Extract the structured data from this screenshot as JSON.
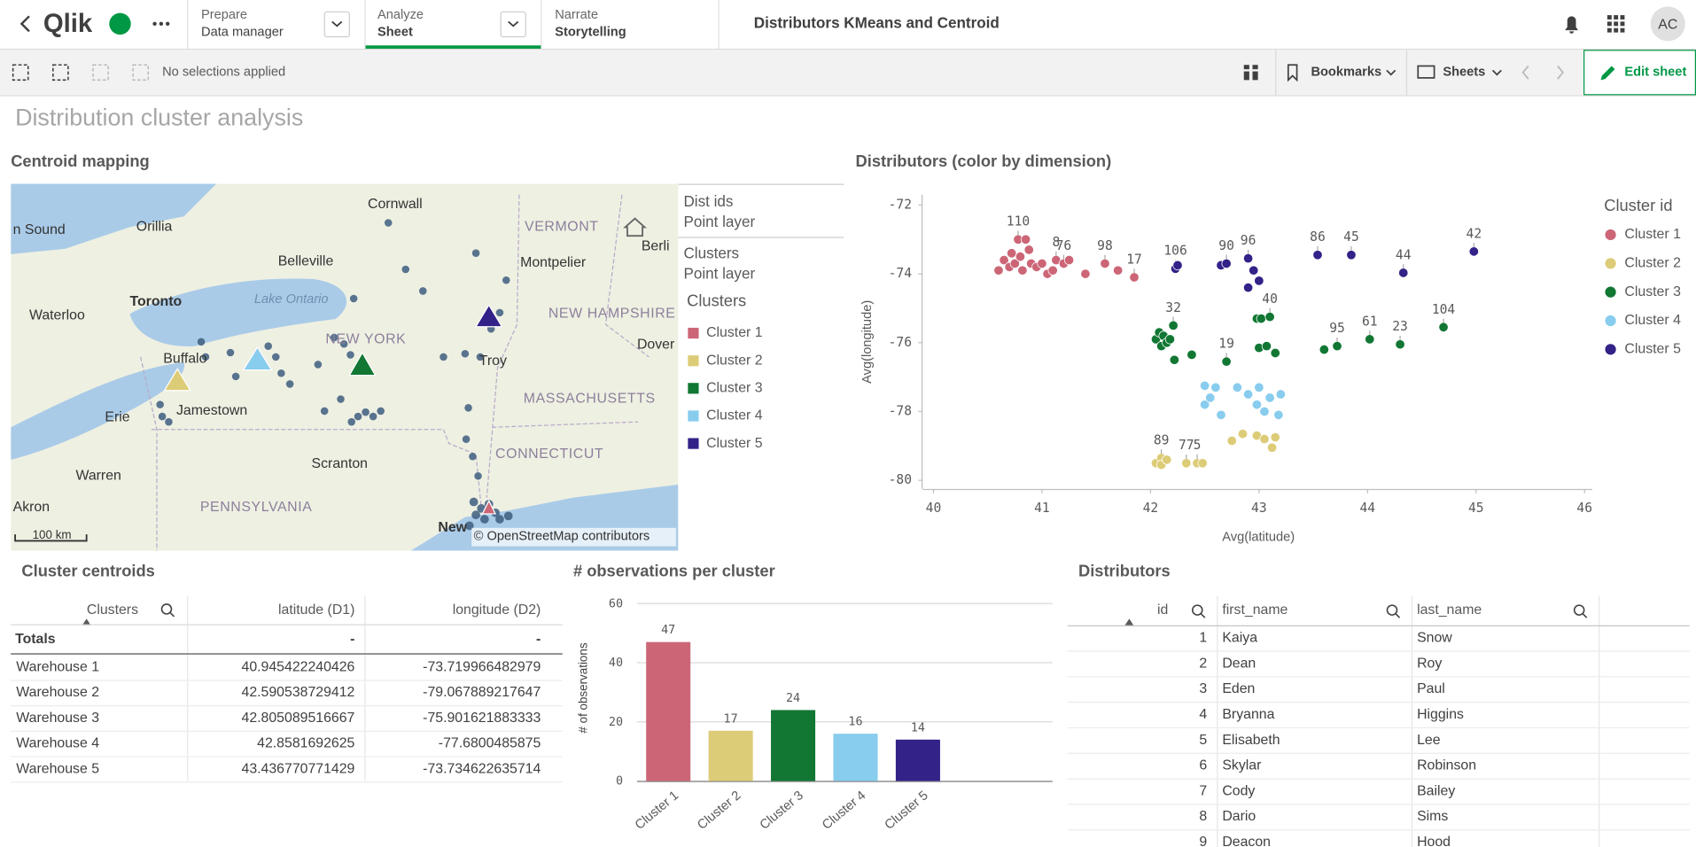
{
  "header": {
    "logo": "Qlik",
    "nav": [
      {
        "label": "Prepare",
        "value": "Data manager"
      },
      {
        "label": "Analyze",
        "value": "Sheet"
      },
      {
        "label": "Narrate",
        "value": "Storytelling"
      }
    ],
    "app_title": "Distributors KMeans and Centroid",
    "avatar": "AC"
  },
  "toolbar": {
    "selections": "No selections applied",
    "bookmarks": "Bookmarks",
    "sheets": "Sheets",
    "edit": "Edit sheet"
  },
  "sheet_title": "Distribution cluster analysis",
  "map": {
    "title": "Centroid mapping",
    "layers": [
      {
        "name": "Dist ids",
        "type": "Point layer"
      },
      {
        "name": "Clusters",
        "type": "Point layer"
      }
    ],
    "legend_title": "Clusters",
    "legend": [
      {
        "name": "Cluster 1",
        "color": "#cc6677"
      },
      {
        "name": "Cluster 2",
        "color": "#ddcc77"
      },
      {
        "name": "Cluster 3",
        "color": "#117733"
      },
      {
        "name": "Cluster 4",
        "color": "#88ccee"
      },
      {
        "name": "Cluster 5",
        "color": "#332288"
      }
    ],
    "places": [
      "n Sound",
      "Orillia",
      "Cornwall",
      "Belleville",
      "Toronto",
      "Lake Ontario",
      "Waterloo",
      "Buffalo",
      "NEW YORK",
      "VERMONT",
      "Montpelier",
      "NEW HAMPSHIRE",
      "Dover",
      "Troy",
      "MASSACHUSETTS",
      "Jamestown",
      "Erie",
      "CONNECTICUT",
      "Scranton",
      "Warren",
      "Akron",
      "PENNSYLVANIA",
      "New",
      "Berli"
    ],
    "scale": "100 km",
    "attribution": "© OpenStreetMap contributors"
  },
  "chart_data": [
    {
      "type": "scatter",
      "title": "Distributors (color by dimension)",
      "x_label": "Avg(latitude)",
      "y_label": "Avg(longitude)",
      "legend_title": "Cluster id",
      "xlim": [
        39.9,
        46.07
      ],
      "xticks": [
        40,
        41,
        42,
        43,
        44,
        45,
        46
      ],
      "ylim": [
        -80.25,
        -71.7
      ],
      "yticks": [
        -72,
        -74,
        -76,
        -78,
        -80
      ],
      "series": [
        {
          "name": "Cluster 1",
          "color": "#cc6677",
          "x": [
            40.6,
            40.65,
            40.7,
            40.72,
            40.75,
            40.78,
            40.8,
            40.82,
            40.85,
            40.88,
            40.9,
            40.95,
            41.0,
            41.05,
            41.1,
            41.13,
            41.2,
            41.25,
            41.4,
            41.58,
            41.7,
            41.85
          ],
          "values": [
            -73.9,
            -73.6,
            -73.8,
            -73.4,
            -73.7,
            -73.0,
            -73.5,
            -73.9,
            -73.0,
            -73.3,
            -73.7,
            -73.8,
            -73.7,
            -74.0,
            -73.9,
            -73.6,
            -73.7,
            -73.6,
            -74.0,
            -73.7,
            -73.9,
            -74.1
          ],
          "labels": [
            null,
            null,
            null,
            null,
            null,
            "110",
            null,
            null,
            null,
            null,
            null,
            null,
            null,
            null,
            null,
            "8",
            "76",
            null,
            null,
            "98",
            null,
            "17"
          ]
        },
        {
          "name": "Cluster 2",
          "color": "#ddcc77",
          "x": [
            42.05,
            42.1,
            42.1,
            42.15,
            42.33,
            42.43,
            42.48,
            42.75,
            42.85,
            42.98,
            43.05,
            43.12,
            43.15
          ],
          "values": [
            -79.5,
            -79.35,
            -79.55,
            -79.4,
            -79.5,
            -79.5,
            -79.5,
            -78.85,
            -78.65,
            -78.7,
            -78.8,
            -79.05,
            -78.75
          ],
          "labels": [
            null,
            "89",
            null,
            null,
            "77",
            "5",
            null,
            null,
            null,
            null,
            null,
            null,
            null
          ]
        },
        {
          "name": "Cluster 3",
          "color": "#117733",
          "x": [
            42.05,
            42.08,
            42.1,
            42.12,
            42.15,
            42.18,
            42.21,
            42.22,
            42.38,
            42.7,
            42.98,
            43.02,
            43.1,
            43.0,
            43.07,
            43.15,
            43.6,
            43.72,
            44.02,
            44.3,
            44.7
          ],
          "values": [
            -75.9,
            -75.7,
            -76.1,
            -75.8,
            -76.0,
            -75.9,
            -75.5,
            -76.5,
            -76.35,
            -76.55,
            -75.3,
            -75.3,
            -75.25,
            -76.15,
            -76.1,
            -76.3,
            -76.2,
            -76.1,
            -75.9,
            -76.05,
            -75.55
          ],
          "labels": [
            null,
            null,
            null,
            null,
            null,
            null,
            "32",
            null,
            null,
            "19",
            null,
            null,
            "40",
            null,
            null,
            null,
            null,
            "95",
            "61",
            "23",
            "104"
          ]
        },
        {
          "name": "Cluster 4",
          "color": "#88ccee",
          "x": [
            42.5,
            42.6,
            42.5,
            42.65,
            42.55,
            42.8,
            42.9,
            42.98,
            43.0,
            43.05,
            43.1,
            43.2,
            43.18
          ],
          "values": [
            -77.25,
            -77.3,
            -77.8,
            -78.1,
            -77.6,
            -77.3,
            -77.5,
            -77.8,
            -77.3,
            -78.0,
            -77.6,
            -77.5,
            -78.1
          ]
        },
        {
          "name": "Cluster 5",
          "color": "#332288",
          "x": [
            42.23,
            42.25,
            42.65,
            42.7,
            42.9,
            42.95,
            42.9,
            43.0,
            43.54,
            43.85,
            44.33,
            44.98
          ],
          "values": [
            -73.85,
            -73.75,
            -73.75,
            -73.7,
            -73.55,
            -73.9,
            -74.4,
            -74.2,
            -73.45,
            -73.45,
            -73.97,
            -73.35
          ],
          "labels": [
            "106",
            null,
            null,
            "90",
            "96",
            null,
            null,
            null,
            "86",
            "45",
            "44",
            "42"
          ]
        }
      ]
    },
    {
      "type": "bar",
      "title": "# observations per cluster",
      "y_label": "# of observations",
      "categories": [
        "Cluster 1",
        "Cluster 2",
        "Cluster 3",
        "Cluster 4",
        "Cluster 5"
      ],
      "values": [
        47,
        17,
        24,
        16,
        14
      ],
      "colors": [
        "#cc6677",
        "#ddcc77",
        "#117733",
        "#88ccee",
        "#332288"
      ],
      "ylim": [
        0,
        60
      ],
      "yticks": [
        0,
        20,
        40,
        60
      ],
      "grid": true
    }
  ],
  "centroid_table": {
    "title": "Cluster centroids",
    "columns": [
      "Clusters",
      "latitude (D1)",
      "longitude (D2)"
    ],
    "totals": [
      "Totals",
      "-",
      "-"
    ],
    "rows": [
      [
        "Warehouse 1",
        "40.945422240426",
        "-73.719966482979"
      ],
      [
        "Warehouse 2",
        "42.590538729412",
        "-79.067889217647"
      ],
      [
        "Warehouse 3",
        "42.805089516667",
        "-75.901621883333"
      ],
      [
        "Warehouse 4",
        "42.8581692625",
        "-77.6800485875"
      ],
      [
        "Warehouse 5",
        "43.436770771429",
        "-73.734622635714"
      ]
    ]
  },
  "distributors_table": {
    "title": "Distributors",
    "columns": [
      "id",
      "first_name",
      "last_name"
    ],
    "rows": [
      [
        "1",
        "Kaiya",
        "Snow"
      ],
      [
        "2",
        "Dean",
        "Roy"
      ],
      [
        "3",
        "Eden",
        "Paul"
      ],
      [
        "4",
        "Bryanna",
        "Higgins"
      ],
      [
        "5",
        "Elisabeth",
        "Lee"
      ],
      [
        "6",
        "Skylar",
        "Robinson"
      ],
      [
        "7",
        "Cody",
        "Bailey"
      ],
      [
        "8",
        "Dario",
        "Sims"
      ],
      [
        "9",
        "Deacon",
        "Hood"
      ]
    ]
  }
}
